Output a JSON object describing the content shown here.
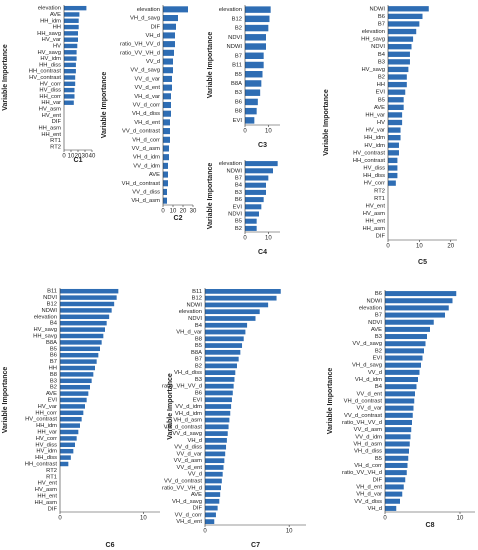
{
  "chart_data": [
    {
      "type": "barh",
      "x_label": "C1",
      "y_label": "Variable Importance",
      "color": "#2e6db4",
      "categories": [
        "elevation",
        "AVE",
        "HH_idm",
        "HH",
        "HH_savg",
        "HV_var",
        "HV",
        "HV_savg",
        "HV_idm",
        "HH_diss",
        "HH_contrast",
        "HV_contrast",
        "HV_corr",
        "HV_diss",
        "HH_corr",
        "HH_var",
        "HV_asm",
        "HV_ent",
        "DIF",
        "HH_asm",
        "HH_ent",
        "RT1",
        "RT2"
      ],
      "values": [
        32,
        22,
        21,
        21,
        20,
        20,
        19,
        18,
        18,
        17,
        17,
        16,
        16,
        15,
        15,
        14,
        0,
        0,
        0,
        0,
        0,
        0,
        0
      ],
      "xlim": [
        0,
        40
      ],
      "xticks": [
        0,
        10,
        20,
        30,
        40
      ]
    },
    {
      "type": "barh",
      "x_label": "C2",
      "y_label": "Variable Importance",
      "color": "#2e6db4",
      "categories": [
        "elevation",
        "VH_d_savg",
        "DIF",
        "VH_d",
        "ratio_VH_VV_d",
        "ratio_VV_VH_d",
        "VV_d",
        "VV_d_savg",
        "VV_d_var",
        "VV_d_ent",
        "VH_d_var",
        "VV_d_corr",
        "VH_d_diss",
        "VH_d_ent",
        "VV_d_contrast",
        "VH_d_corr",
        "VV_d_asm",
        "VH_d_idm",
        "VV_d_idm",
        "AVE",
        "VH_d_contrast",
        "VV_d_diss",
        "VH_d_asm"
      ],
      "values": [
        25,
        15,
        13,
        12,
        12,
        11,
        10,
        10,
        9,
        9,
        8,
        8,
        8,
        7,
        7,
        7,
        6,
        6,
        5,
        5,
        5,
        4,
        4
      ],
      "xlim": [
        0,
        30
      ],
      "xticks": [
        0,
        10,
        20,
        30
      ]
    },
    {
      "type": "barh",
      "x_label": "C3",
      "y_label": "Variable Importance",
      "color": "#2e6db4",
      "categories": [
        "elevation",
        "B12",
        "B2",
        "NDVI",
        "NDWI",
        "B7",
        "B11",
        "B5",
        "B8A",
        "B3",
        "B6",
        "B8",
        "EVI"
      ],
      "values": [
        11,
        10.5,
        10,
        9,
        9,
        8,
        8,
        7.5,
        7,
        6.5,
        5.5,
        5,
        4
      ],
      "xlim": [
        0,
        15
      ],
      "xticks": [
        0,
        10
      ]
    },
    {
      "type": "barh",
      "x_label": "C4",
      "y_label": "Variable Importance",
      "color": "#2e6db4",
      "categories": [
        "elevation",
        "NDWI",
        "B7",
        "B4",
        "B3",
        "B6",
        "EVI",
        "NDVI",
        "B5",
        "B2"
      ],
      "values": [
        14,
        12,
        10,
        9,
        9,
        8,
        7,
        6,
        5,
        5
      ],
      "xlim": [
        0,
        15
      ],
      "xticks": [
        0,
        10
      ]
    },
    {
      "type": "barh",
      "x_label": "C5",
      "y_label": "Variable Importance",
      "color": "#2e6db4",
      "categories": [
        "NDWI",
        "B6",
        "B7",
        "elevation",
        "HH_savg",
        "NDVI",
        "B4",
        "B3",
        "HV_savg",
        "B2",
        "HH",
        "EVI",
        "B5",
        "AVE",
        "HH_var",
        "HV",
        "HV_var",
        "HH_idm",
        "HV_idm",
        "HV_contrast",
        "HH_contrast",
        "HV_diss",
        "HH_diss",
        "HV_corr",
        "RT2",
        "RT1",
        "HV_ent",
        "HV_asm",
        "HH_ent",
        "HH_asm",
        "DIF"
      ],
      "values": [
        13,
        11,
        10,
        9,
        8,
        7.5,
        7,
        7,
        6.5,
        6,
        6,
        5.5,
        5,
        5,
        4.5,
        4.5,
        4,
        4,
        3.5,
        3.5,
        3,
        3,
        3,
        2.5,
        0,
        0,
        0,
        0,
        0,
        0,
        0
      ],
      "xlim": [
        0,
        22
      ],
      "xticks": [
        0,
        10,
        20
      ]
    },
    {
      "type": "barh",
      "x_label": "C6",
      "y_label": "Variable Importance",
      "color": "#2e6db4",
      "categories": [
        "B11",
        "NDVI",
        "B12",
        "NDWI",
        "elevation",
        "B4",
        "HV_savg",
        "HH_savg",
        "B8A",
        "B5",
        "B6",
        "B7",
        "HH",
        "B8",
        "B3",
        "B2",
        "AVE",
        "EVI",
        "HV_var",
        "HH_corr",
        "HV_contrast",
        "HH_idm",
        "HH_var",
        "HV_corr",
        "HV_diss",
        "HV_idm",
        "HH_diss",
        "HH_contrast",
        "RT2",
        "RT1",
        "HV_ent",
        "HV_asm",
        "HH_ent",
        "HH_asm",
        "DIF"
      ],
      "values": [
        7,
        6.8,
        6.5,
        6.2,
        5.9,
        5.6,
        5.4,
        5.2,
        5,
        4.8,
        4.6,
        4.4,
        4.2,
        4,
        3.8,
        3.6,
        3.4,
        3.2,
        3,
        2.8,
        2.6,
        2.4,
        2.2,
        2,
        1.8,
        1.6,
        1.3,
        1,
        0,
        0,
        0,
        0,
        0,
        0,
        0
      ],
      "xlim": [
        0,
        12
      ],
      "xticks": [
        0,
        10
      ]
    },
    {
      "type": "barh",
      "x_label": "C7",
      "y_label": "Variable Importance",
      "color": "#2e6db4",
      "categories": [
        "B11",
        "B12",
        "NDWI",
        "elevation",
        "NDVI",
        "B4",
        "VH_d_var",
        "B8",
        "B5",
        "B8A",
        "B7",
        "B2",
        "VH_d_diss",
        "B3",
        "ratio_VH_VV_d",
        "B6",
        "EVI",
        "VV_d_idm",
        "VH_d_idm",
        "VH_d_asm",
        "VH_d_contrast",
        "VV_d_savg",
        "VH_d",
        "VV_d_diss",
        "VV_d_var",
        "VV_d_asm",
        "VV_d_ent",
        "VV_d",
        "VV_d_contrast",
        "ratio_VV_VH_d",
        "AVE",
        "VH_d_savg",
        "DIF",
        "VV_d_corr",
        "VH_d_ent"
      ],
      "values": [
        9,
        8.5,
        7.5,
        6.5,
        6,
        5,
        4.8,
        4.6,
        4.4,
        4.2,
        4,
        3.8,
        3.6,
        3.5,
        3.4,
        3.3,
        3.2,
        3.1,
        3,
        2.9,
        2.8,
        2.7,
        2.6,
        2.5,
        2.4,
        2.3,
        2.2,
        2.1,
        2,
        1.9,
        1.8,
        1.7,
        1.5,
        1.3,
        1.1
      ],
      "xlim": [
        0,
        12
      ],
      "xticks": [
        0,
        10
      ]
    },
    {
      "type": "barh",
      "x_label": "C8",
      "y_label": "Variable Importance",
      "color": "#2e6db4",
      "categories": [
        "B6",
        "NDWI",
        "elevation",
        "B7",
        "NDVI",
        "AVE",
        "B3",
        "VV_d_savg",
        "B2",
        "EVI",
        "VH_d_savg",
        "VV_d",
        "VH_d_idm",
        "B4",
        "VV_d_ent",
        "VH_d_contrast",
        "VV_d_var",
        "VV_d_contrast",
        "ratio_VH_VV_d",
        "VV_d_asm",
        "VV_d_idm",
        "VH_d_asm",
        "VH_d_diss",
        "B5",
        "VH_d_corr",
        "ratio_VV_VH_d",
        "DIF",
        "VH_d_ent",
        "VH_d_var",
        "VV_d_diss",
        "VH_d"
      ],
      "values": [
        9.5,
        9,
        8.5,
        8,
        6.5,
        6,
        5.6,
        5.4,
        5.2,
        5,
        4.8,
        4.6,
        4.4,
        4.2,
        4,
        3.9,
        3.8,
        3.7,
        3.6,
        3.5,
        3.4,
        3.3,
        3.2,
        3.1,
        3,
        2.9,
        2.7,
        2.5,
        2.3,
        2,
        1.5
      ],
      "xlim": [
        0,
        12
      ],
      "xticks": [
        0,
        10
      ]
    }
  ]
}
